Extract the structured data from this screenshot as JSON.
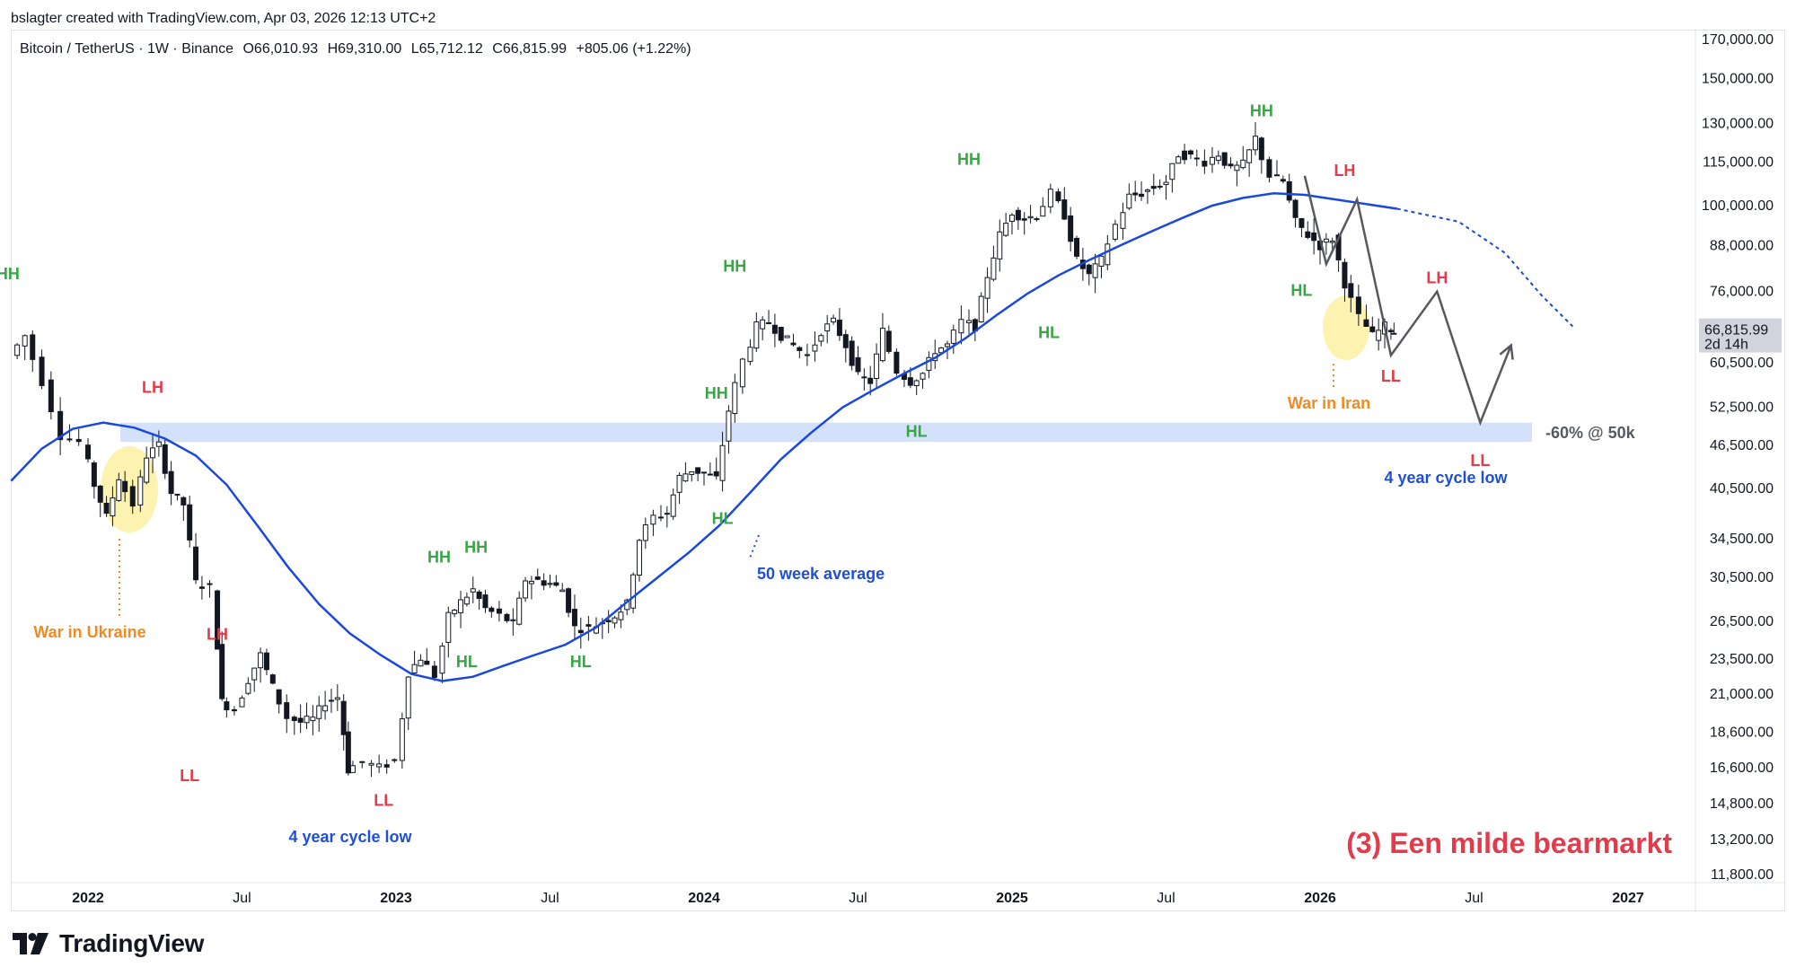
{
  "header": {
    "credit": "bslagter created with TradingView.com, Apr 03, 2026 12:13 UTC+2"
  },
  "legend": {
    "symbol": "Bitcoin / TetherUS · 1W · Binance",
    "open": "O66,010.93",
    "high": "H69,310.00",
    "low": "L65,712.12",
    "close": "C66,815.99",
    "change": "+805.06 (+1.22%)"
  },
  "price_axis": {
    "ticks": [
      {
        "value": 170000,
        "label": "170,000.00"
      },
      {
        "value": 150000,
        "label": "150,000.00"
      },
      {
        "value": 130000,
        "label": "130,000.00"
      },
      {
        "value": 115000,
        "label": "115,000.00"
      },
      {
        "value": 100000,
        "label": "100,000.00"
      },
      {
        "value": 88000,
        "label": "88,000.00"
      },
      {
        "value": 76000,
        "label": "76,000.00"
      },
      {
        "value": 60500,
        "label": "60,500.00"
      },
      {
        "value": 52500,
        "label": "52,500.00"
      },
      {
        "value": 46500,
        "label": "46,500.00"
      },
      {
        "value": 40500,
        "label": "40,500.00"
      },
      {
        "value": 34500,
        "label": "34,500.00"
      },
      {
        "value": 30500,
        "label": "30,500.00"
      },
      {
        "value": 26500,
        "label": "26,500.00"
      },
      {
        "value": 23500,
        "label": "23,500.00"
      },
      {
        "value": 21000,
        "label": "21,000.00"
      },
      {
        "value": 18600,
        "label": "18,600.00"
      },
      {
        "value": 16600,
        "label": "16,600.00"
      },
      {
        "value": 14800,
        "label": "14,800.00"
      },
      {
        "value": 13200,
        "label": "13,200.00"
      },
      {
        "value": 11800,
        "label": "11,800.00"
      }
    ],
    "current_price": "66,815.99",
    "countdown": "2d 14h",
    "scale": "log"
  },
  "time_axis": {
    "ticks": [
      {
        "t": 2022.0,
        "label": "2022",
        "year": true
      },
      {
        "t": 2022.5,
        "label": "Jul",
        "year": false
      },
      {
        "t": 2023.0,
        "label": "2023",
        "year": true
      },
      {
        "t": 2023.5,
        "label": "Jul",
        "year": false
      },
      {
        "t": 2024.0,
        "label": "2024",
        "year": true
      },
      {
        "t": 2024.5,
        "label": "Jul",
        "year": false
      },
      {
        "t": 2025.0,
        "label": "2025",
        "year": true
      },
      {
        "t": 2025.5,
        "label": "Jul",
        "year": false
      },
      {
        "t": 2026.0,
        "label": "2026",
        "year": true
      },
      {
        "t": 2026.5,
        "label": "Jul",
        "year": false
      },
      {
        "t": 2027.0,
        "label": "2027",
        "year": true
      }
    ]
  },
  "annotations": {
    "labels": [
      {
        "text": "HH",
        "t": 2021.74,
        "price": 79000,
        "kind": "hh"
      },
      {
        "text": "LH",
        "t": 2022.21,
        "price": 55000,
        "kind": "lh"
      },
      {
        "text": "LL",
        "t": 2022.33,
        "price": 15900,
        "kind": "lh"
      },
      {
        "text": "LH",
        "t": 2022.42,
        "price": 25000,
        "kind": "lh"
      },
      {
        "text": "LL",
        "t": 2022.96,
        "price": 14700,
        "kind": "lh"
      },
      {
        "text": "HH",
        "t": 2023.14,
        "price": 32000,
        "kind": "hh"
      },
      {
        "text": "HH",
        "t": 2023.26,
        "price": 33000,
        "kind": "hh"
      },
      {
        "text": "HL",
        "t": 2023.23,
        "price": 22900,
        "kind": "hh"
      },
      {
        "text": "HL",
        "t": 2023.6,
        "price": 22900,
        "kind": "hh"
      },
      {
        "text": "HH",
        "t": 2024.04,
        "price": 54000,
        "kind": "hh"
      },
      {
        "text": "HL",
        "t": 2024.06,
        "price": 36200,
        "kind": "hh"
      },
      {
        "text": "HH",
        "t": 2024.1,
        "price": 81000,
        "kind": "hh"
      },
      {
        "text": "HL",
        "t": 2024.69,
        "price": 47800,
        "kind": "hh"
      },
      {
        "text": "HH",
        "t": 2024.86,
        "price": 114000,
        "kind": "hh"
      },
      {
        "text": "HL",
        "t": 2025.12,
        "price": 65500,
        "kind": "hh"
      },
      {
        "text": "HH",
        "t": 2025.81,
        "price": 133000,
        "kind": "hh"
      },
      {
        "text": "HL",
        "t": 2025.94,
        "price": 75000,
        "kind": "hh"
      },
      {
        "text": "LH",
        "t": 2026.08,
        "price": 110000,
        "kind": "lh"
      },
      {
        "text": "LL",
        "t": 2026.23,
        "price": 57000,
        "kind": "lh"
      },
      {
        "text": "LH",
        "t": 2026.38,
        "price": 78000,
        "kind": "lh"
      },
      {
        "text": "LL",
        "t": 2026.52,
        "price": 43500,
        "kind": "lh"
      }
    ],
    "war_ukraine": "War in Ukraine",
    "war_iran": "War in Iran",
    "ma_label": "50 week average",
    "support_label": "-60% @ 50k",
    "cycle_low_2022": "4 year cycle low",
    "cycle_low_2026": "4 year cycle low",
    "title": "(3) Een milde bearmarkt"
  },
  "colors": {
    "bull": "#131722",
    "bear": "#131722",
    "ma": "#1848e0",
    "hh": "#3aa546",
    "lh": "#e33b4b",
    "orange": "#f08a24",
    "blue_text": "#1f4fd6",
    "support_band": "#d4e1fb",
    "highlight": "#fbf2a6",
    "projection": "#555a61",
    "title": "#e33b4b"
  },
  "chart_data": {
    "type": "candlestick",
    "symbol": "BTCUSDT",
    "interval": "1W",
    "y_scale": "log",
    "ylim": [
      11800,
      175000
    ],
    "x_range": [
      2021.75,
      2027.3
    ],
    "moving_average": "50 week average",
    "support_zone": [
      47000,
      50000
    ],
    "price_path": [
      {
        "t": 2021.77,
        "p": 62000
      },
      {
        "t": 2021.82,
        "p": 66000
      },
      {
        "t": 2021.88,
        "p": 57000
      },
      {
        "t": 2021.94,
        "p": 48000
      },
      {
        "t": 2022.0,
        "p": 47000
      },
      {
        "t": 2022.04,
        "p": 41000
      },
      {
        "t": 2022.08,
        "p": 37000
      },
      {
        "t": 2022.12,
        "p": 42000
      },
      {
        "t": 2022.17,
        "p": 38500
      },
      {
        "t": 2022.21,
        "p": 45000
      },
      {
        "t": 2022.25,
        "p": 46500
      },
      {
        "t": 2022.29,
        "p": 40000
      },
      {
        "t": 2022.33,
        "p": 38500
      },
      {
        "t": 2022.37,
        "p": 30000
      },
      {
        "t": 2022.42,
        "p": 29500
      },
      {
        "t": 2022.45,
        "p": 20500
      },
      {
        "t": 2022.5,
        "p": 20000
      },
      {
        "t": 2022.54,
        "p": 22000
      },
      {
        "t": 2022.58,
        "p": 23800
      },
      {
        "t": 2022.62,
        "p": 21500
      },
      {
        "t": 2022.67,
        "p": 19500
      },
      {
        "t": 2022.71,
        "p": 19200
      },
      {
        "t": 2022.75,
        "p": 19400
      },
      {
        "t": 2022.79,
        "p": 20500
      },
      {
        "t": 2022.83,
        "p": 20800
      },
      {
        "t": 2022.86,
        "p": 16500
      },
      {
        "t": 2022.92,
        "p": 16900
      },
      {
        "t": 2022.97,
        "p": 16600
      },
      {
        "t": 2023.02,
        "p": 17000
      },
      {
        "t": 2023.06,
        "p": 22500
      },
      {
        "t": 2023.1,
        "p": 23600
      },
      {
        "t": 2023.15,
        "p": 22300
      },
      {
        "t": 2023.19,
        "p": 26900
      },
      {
        "t": 2023.23,
        "p": 28200
      },
      {
        "t": 2023.27,
        "p": 29300
      },
      {
        "t": 2023.31,
        "p": 27600
      },
      {
        "t": 2023.36,
        "p": 27000
      },
      {
        "t": 2023.4,
        "p": 26300
      },
      {
        "t": 2023.44,
        "p": 30300
      },
      {
        "t": 2023.48,
        "p": 30200
      },
      {
        "t": 2023.52,
        "p": 29900
      },
      {
        "t": 2023.56,
        "p": 29300
      },
      {
        "t": 2023.6,
        "p": 26000
      },
      {
        "t": 2023.65,
        "p": 25900
      },
      {
        "t": 2023.69,
        "p": 26500
      },
      {
        "t": 2023.73,
        "p": 27000
      },
      {
        "t": 2023.77,
        "p": 28000
      },
      {
        "t": 2023.81,
        "p": 34500
      },
      {
        "t": 2023.86,
        "p": 37000
      },
      {
        "t": 2023.9,
        "p": 37500
      },
      {
        "t": 2023.94,
        "p": 42000
      },
      {
        "t": 2023.98,
        "p": 43000
      },
      {
        "t": 2024.02,
        "p": 42500
      },
      {
        "t": 2024.06,
        "p": 41800
      },
      {
        "t": 2024.1,
        "p": 52000
      },
      {
        "t": 2024.15,
        "p": 61000
      },
      {
        "t": 2024.19,
        "p": 68000
      },
      {
        "t": 2024.23,
        "p": 69000
      },
      {
        "t": 2024.27,
        "p": 66000
      },
      {
        "t": 2024.31,
        "p": 64000
      },
      {
        "t": 2024.36,
        "p": 62000
      },
      {
        "t": 2024.4,
        "p": 67000
      },
      {
        "t": 2024.44,
        "p": 69000
      },
      {
        "t": 2024.48,
        "p": 64000
      },
      {
        "t": 2024.52,
        "p": 58000
      },
      {
        "t": 2024.56,
        "p": 57000
      },
      {
        "t": 2024.6,
        "p": 67000
      },
      {
        "t": 2024.65,
        "p": 59000
      },
      {
        "t": 2024.69,
        "p": 57000
      },
      {
        "t": 2024.73,
        "p": 58500
      },
      {
        "t": 2024.77,
        "p": 63000
      },
      {
        "t": 2024.81,
        "p": 64000
      },
      {
        "t": 2024.86,
        "p": 69000
      },
      {
        "t": 2024.9,
        "p": 68000
      },
      {
        "t": 2024.94,
        "p": 80000
      },
      {
        "t": 2024.98,
        "p": 91000
      },
      {
        "t": 2025.02,
        "p": 98000
      },
      {
        "t": 2025.06,
        "p": 96000
      },
      {
        "t": 2025.1,
        "p": 97000
      },
      {
        "t": 2025.15,
        "p": 104000
      },
      {
        "t": 2025.19,
        "p": 97000
      },
      {
        "t": 2025.23,
        "p": 84000
      },
      {
        "t": 2025.27,
        "p": 80000
      },
      {
        "t": 2025.31,
        "p": 84000
      },
      {
        "t": 2025.36,
        "p": 94000
      },
      {
        "t": 2025.4,
        "p": 103000
      },
      {
        "t": 2025.44,
        "p": 104000
      },
      {
        "t": 2025.48,
        "p": 106000
      },
      {
        "t": 2025.52,
        "p": 108000
      },
      {
        "t": 2025.56,
        "p": 118000
      },
      {
        "t": 2025.6,
        "p": 117000
      },
      {
        "t": 2025.65,
        "p": 115000
      },
      {
        "t": 2025.69,
        "p": 118000
      },
      {
        "t": 2025.73,
        "p": 112000
      },
      {
        "t": 2025.77,
        "p": 114000
      },
      {
        "t": 2025.81,
        "p": 124000
      },
      {
        "t": 2025.86,
        "p": 110000
      },
      {
        "t": 2025.9,
        "p": 108000
      },
      {
        "t": 2025.94,
        "p": 95000
      },
      {
        "t": 2025.98,
        "p": 91000
      },
      {
        "t": 2026.02,
        "p": 88000
      },
      {
        "t": 2026.06,
        "p": 90000
      },
      {
        "t": 2026.1,
        "p": 78000
      },
      {
        "t": 2026.15,
        "p": 70000
      },
      {
        "t": 2026.19,
        "p": 66000
      },
      {
        "t": 2026.23,
        "p": 68000
      },
      {
        "t": 2026.25,
        "p": 66816
      }
    ],
    "ma_path": [
      {
        "t": 2021.75,
        "p": 41500
      },
      {
        "t": 2021.85,
        "p": 46000
      },
      {
        "t": 2021.95,
        "p": 49000
      },
      {
        "t": 2022.05,
        "p": 50000
      },
      {
        "t": 2022.15,
        "p": 49200
      },
      {
        "t": 2022.25,
        "p": 47500
      },
      {
        "t": 2022.35,
        "p": 45000
      },
      {
        "t": 2022.45,
        "p": 41000
      },
      {
        "t": 2022.55,
        "p": 36000
      },
      {
        "t": 2022.65,
        "p": 31500
      },
      {
        "t": 2022.75,
        "p": 28000
      },
      {
        "t": 2022.85,
        "p": 25500
      },
      {
        "t": 2022.95,
        "p": 23800
      },
      {
        "t": 2023.05,
        "p": 22400
      },
      {
        "t": 2023.15,
        "p": 21900
      },
      {
        "t": 2023.25,
        "p": 22200
      },
      {
        "t": 2023.35,
        "p": 23000
      },
      {
        "t": 2023.45,
        "p": 23800
      },
      {
        "t": 2023.55,
        "p": 24600
      },
      {
        "t": 2023.65,
        "p": 26000
      },
      {
        "t": 2023.75,
        "p": 28200
      },
      {
        "t": 2023.85,
        "p": 30500
      },
      {
        "t": 2023.95,
        "p": 33000
      },
      {
        "t": 2024.05,
        "p": 36000
      },
      {
        "t": 2024.15,
        "p": 40000
      },
      {
        "t": 2024.25,
        "p": 44500
      },
      {
        "t": 2024.35,
        "p": 48500
      },
      {
        "t": 2024.45,
        "p": 52500
      },
      {
        "t": 2024.55,
        "p": 55500
      },
      {
        "t": 2024.65,
        "p": 58500
      },
      {
        "t": 2024.75,
        "p": 61500
      },
      {
        "t": 2024.85,
        "p": 65500
      },
      {
        "t": 2024.95,
        "p": 70500
      },
      {
        "t": 2025.05,
        "p": 75500
      },
      {
        "t": 2025.15,
        "p": 80000
      },
      {
        "t": 2025.25,
        "p": 84000
      },
      {
        "t": 2025.35,
        "p": 88000
      },
      {
        "t": 2025.45,
        "p": 92000
      },
      {
        "t": 2025.55,
        "p": 96000
      },
      {
        "t": 2025.65,
        "p": 100000
      },
      {
        "t": 2025.75,
        "p": 102500
      },
      {
        "t": 2025.85,
        "p": 104000
      },
      {
        "t": 2025.95,
        "p": 103500
      },
      {
        "t": 2026.05,
        "p": 102000
      },
      {
        "t": 2026.15,
        "p": 100500
      },
      {
        "t": 2026.25,
        "p": 99000
      }
    ],
    "ma_projection": [
      {
        "t": 2026.25,
        "p": 99000
      },
      {
        "t": 2026.45,
        "p": 95000
      },
      {
        "t": 2026.6,
        "p": 86000
      },
      {
        "t": 2026.72,
        "p": 75000
      },
      {
        "t": 2026.82,
        "p": 68000
      }
    ],
    "projection_path": [
      {
        "t": 2025.95,
        "p": 110000
      },
      {
        "t": 2026.02,
        "p": 83000
      },
      {
        "t": 2026.12,
        "p": 102000
      },
      {
        "t": 2026.23,
        "p": 62000
      },
      {
        "t": 2026.38,
        "p": 76000
      },
      {
        "t": 2026.52,
        "p": 50000
      },
      {
        "t": 2026.62,
        "p": 64000
      }
    ]
  }
}
